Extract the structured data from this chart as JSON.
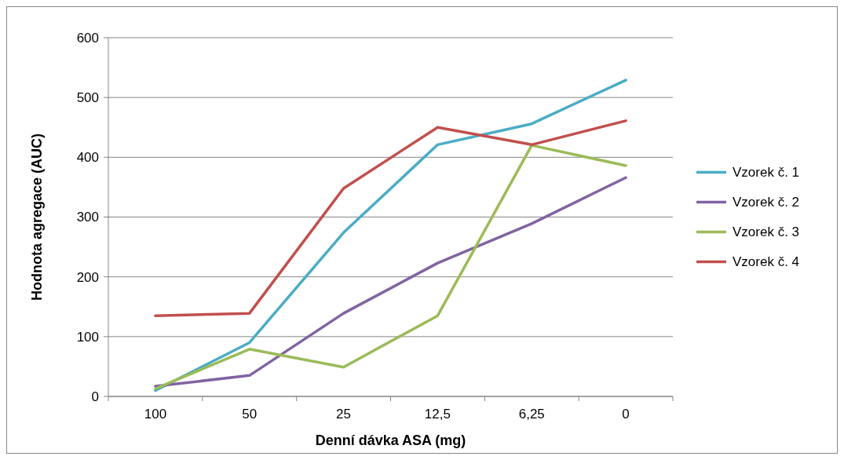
{
  "chart_data": {
    "type": "line",
    "xlabel": "Denní dávka ASA (mg)",
    "ylabel": "Hodnota agregace (AUC)",
    "categories": [
      "100",
      "50",
      "25",
      "12,5",
      "6,25",
      "0"
    ],
    "series": [
      {
        "name": "Vzorek č. 1",
        "color": "#4bacc6",
        "values": [
          10,
          90,
          274,
          421,
          456,
          529
        ]
      },
      {
        "name": "Vzorek č. 2",
        "color": "#8064a2",
        "values": [
          17,
          35,
          139,
          223,
          289,
          366
        ]
      },
      {
        "name": "Vzorek č. 3",
        "color": "#9bbb59",
        "values": [
          13,
          79,
          49,
          135,
          420,
          386
        ]
      },
      {
        "name": "Vzorek č. 4",
        "color": "#c0504d",
        "values": [
          135,
          139,
          348,
          450,
          421,
          461
        ]
      }
    ],
    "ylim": [
      0,
      600
    ],
    "yticks": [
      0,
      100,
      200,
      300,
      400,
      500,
      600
    ],
    "grid": "y",
    "legend": "right",
    "marker": "none",
    "line_style": "solid"
  }
}
